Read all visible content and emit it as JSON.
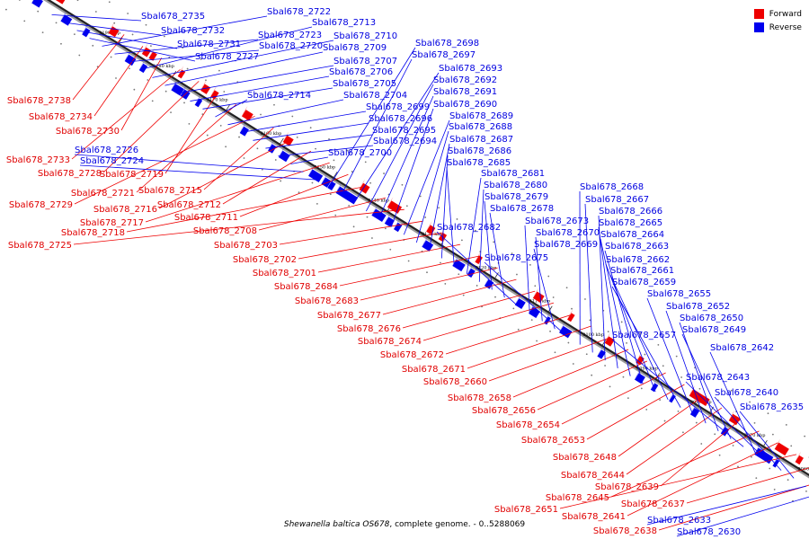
{
  "legend": {
    "forward_label": "Forward",
    "reverse_label": "Reverse",
    "forward_color": "#ee0000",
    "reverse_color": "#0000ee"
  },
  "caption": {
    "organism": "Shewanella baltica OS678",
    "rest": ", complete genome. - 0..5288069"
  },
  "chart_data": {
    "type": "genome-map",
    "view": "linear diagonal",
    "strands": [
      "Forward",
      "Reverse"
    ],
    "tick_labels": [
      "3190 kbp",
      "3180 kbp",
      "3170 kbp",
      "3160 kbp",
      "3150 kbp",
      "3140 kbp",
      "3130 kbp",
      "3120 kbp",
      "3110 kbp",
      "3100 kbp",
      "3090 kbp",
      "3080 kbp",
      "3070 kbp",
      "3060 kbp"
    ],
    "forward_genes": [
      "Sbal678_2738",
      "Sbal678_2734",
      "Sbal678_2730",
      "Sbal678_2733",
      "Sbal678_2728",
      "Sbal678_2719",
      "Sbal678_2721",
      "Sbal678_2729",
      "Sbal678_2715",
      "Sbal678_2716",
      "Sbal678_2712",
      "Sbal678_2717",
      "Sbal678_2711",
      "Sbal678_2718",
      "Sbal678_2708",
      "Sbal678_2725",
      "Sbal678_2703",
      "Sbal678_2702",
      "Sbal678_2701",
      "Sbal678_2684",
      "Sbal678_2683",
      "Sbal678_2677",
      "Sbal678_2676",
      "Sbal678_2674",
      "Sbal678_2672",
      "Sbal678_2671",
      "Sbal678_2660",
      "Sbal678_2658",
      "Sbal678_2656",
      "Sbal678_2654",
      "Sbal678_2653",
      "Sbal678_2648",
      "Sbal678_2644",
      "Sbal678_2639",
      "Sbal678_2645",
      "Sbal678_2641",
      "Sbal678_2651",
      "Sbal678_2637",
      "Sbal678_2638"
    ],
    "reverse_genes": [
      "Sbal678_2735",
      "Sbal678_2732",
      "Sbal678_2731",
      "Sbal678_2727",
      "Sbal678_2722",
      "Sbal678_2723",
      "Sbal678_2720",
      "Sbal678_2713",
      "Sbal678_2710",
      "Sbal678_2709",
      "Sbal678_2707",
      "Sbal678_2706",
      "Sbal678_2705",
      "Sbal678_2714",
      "Sbal678_2704",
      "Sbal678_2699",
      "Sbal678_2696",
      "Sbal678_2695",
      "Sbal678_2694",
      "Sbal678_2700",
      "Sbal678_2726",
      "Sbal678_2724",
      "Sbal678_2698",
      "Sbal678_2697",
      "Sbal678_2693",
      "Sbal678_2692",
      "Sbal678_2691",
      "Sbal678_2690",
      "Sbal678_2689",
      "Sbal678_2688",
      "Sbal678_2687",
      "Sbal678_2686",
      "Sbal678_2685",
      "Sbal678_2681",
      "Sbal678_2680",
      "Sbal678_2679",
      "Sbal678_2678",
      "Sbal678_2682",
      "Sbal678_2673",
      "Sbal678_2670",
      "Sbal678_2669",
      "Sbal678_2675",
      "Sbal678_2668",
      "Sbal678_2667",
      "Sbal678_2666",
      "Sbal678_2665",
      "Sbal678_2664",
      "Sbal678_2663",
      "Sbal678_2662",
      "Sbal678_2661",
      "Sbal678_2659",
      "Sbal678_2655",
      "Sbal678_2652",
      "Sbal678_2650",
      "Sbal678_2649",
      "Sbal678_2657",
      "Sbal678_2642",
      "Sbal678_2643",
      "Sbal678_2640",
      "Sbal678_2635",
      "Sbal678_2633",
      "Sbal678_2630"
    ]
  }
}
